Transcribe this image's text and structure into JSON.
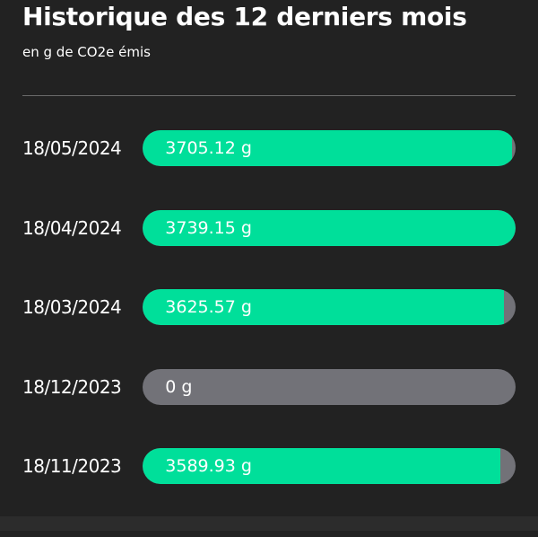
{
  "header": {
    "title": "Historique des 12 derniers mois",
    "subtitle": "en g de CO2e émis"
  },
  "colors": {
    "fill": "#00df9a",
    "track": "#727278",
    "background": "#222222"
  },
  "history": [
    {
      "date": "18/05/2024",
      "label": "3705.12 g",
      "value": 3705.12
    },
    {
      "date": "18/04/2024",
      "label": "3739.15 g",
      "value": 3739.15
    },
    {
      "date": "18/03/2024",
      "label": "3625.57 g",
      "value": 3625.57
    },
    {
      "date": "18/12/2023",
      "label": "0 g",
      "value": 0
    },
    {
      "date": "18/11/2023",
      "label": "3589.93 g",
      "value": 3589.93
    }
  ]
}
